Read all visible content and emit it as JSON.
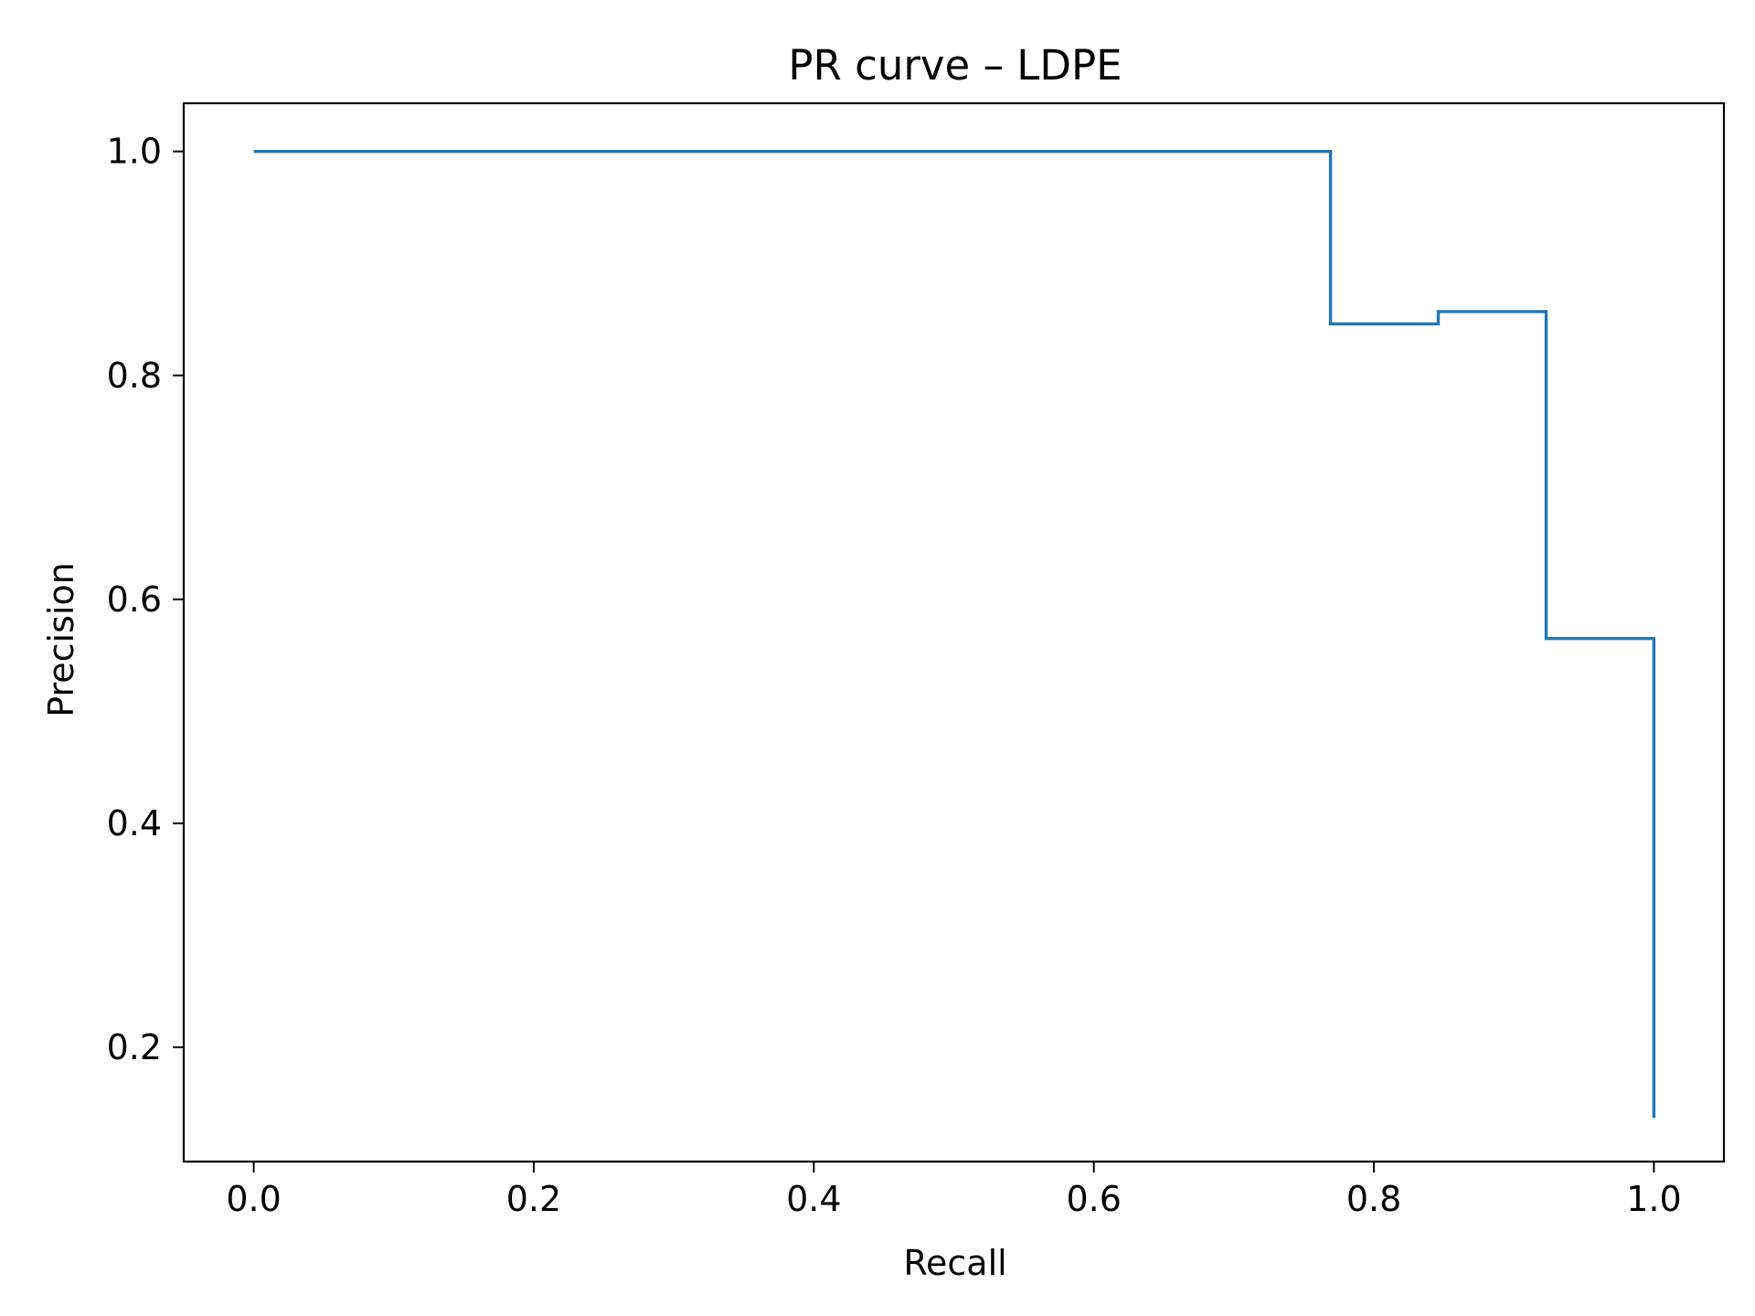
{
  "chart_data": {
    "type": "line",
    "title": "PR curve – LDPE",
    "xlabel": "Recall",
    "ylabel": "Precision",
    "xlim": [
      -0.05,
      1.05
    ],
    "ylim": [
      0.098,
      1.043
    ],
    "xticks": [
      {
        "value": 0.0,
        "label": "0.0"
      },
      {
        "value": 0.2,
        "label": "0.2"
      },
      {
        "value": 0.4,
        "label": "0.4"
      },
      {
        "value": 0.6,
        "label": "0.6"
      },
      {
        "value": 0.8,
        "label": "0.8"
      },
      {
        "value": 1.0,
        "label": "1.0"
      }
    ],
    "yticks": [
      {
        "value": 0.2,
        "label": "0.2"
      },
      {
        "value": 0.4,
        "label": "0.4"
      },
      {
        "value": 0.6,
        "label": "0.6"
      },
      {
        "value": 0.8,
        "label": "0.8"
      },
      {
        "value": 1.0,
        "label": "1.0"
      }
    ],
    "grid": false,
    "series": [
      {
        "color": "#1f77b4",
        "step": "post",
        "points": [
          {
            "x": 0.0,
            "y": 1.0
          },
          {
            "x": 0.769,
            "y": 1.0
          },
          {
            "x": 0.769,
            "y": 0.846
          },
          {
            "x": 0.846,
            "y": 0.846
          },
          {
            "x": 0.846,
            "y": 0.857
          },
          {
            "x": 0.923,
            "y": 0.857
          },
          {
            "x": 0.923,
            "y": 0.565
          },
          {
            "x": 1.0,
            "y": 0.565
          },
          {
            "x": 1.0,
            "y": 0.137
          }
        ]
      }
    ]
  }
}
